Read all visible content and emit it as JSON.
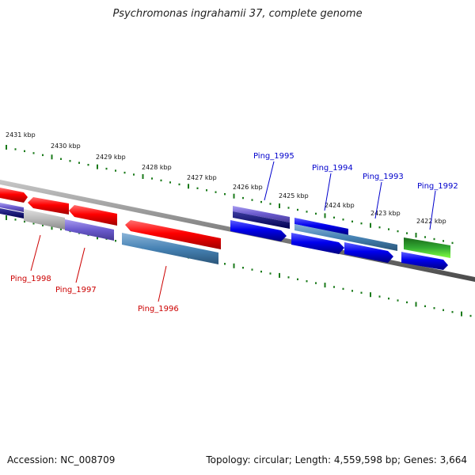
{
  "title": "Psychromonas ingrahamii 37, complete genome",
  "footer": {
    "accession": "Accession: NC_008709",
    "summary": "Topology: circular; Length: 4,559,598 bp; Genes: 3,664"
  },
  "colors": {
    "backbone": "#808080",
    "ticks": "#1a7a1a",
    "label_forward": "#0000cc",
    "label_reverse": "#cc0000"
  },
  "scale": {
    "unit": "kbp",
    "labels": [
      "2431 kbp",
      "2430 kbp",
      "2429 kbp",
      "2428 kbp",
      "2427 kbp",
      "2426 kbp",
      "2425 kbp",
      "2424 kbp",
      "2423 kbp",
      "2422 kbp"
    ]
  },
  "genes": [
    {
      "name": "Ping_1998",
      "strand": "reverse"
    },
    {
      "name": "Ping_1997",
      "strand": "reverse"
    },
    {
      "name": "Ping_1996",
      "strand": "reverse"
    },
    {
      "name": "Ping_1995",
      "strand": "forward"
    },
    {
      "name": "Ping_1994",
      "strand": "forward"
    },
    {
      "name": "Ping_1993",
      "strand": "forward"
    },
    {
      "name": "Ping_1992",
      "strand": "forward"
    }
  ]
}
